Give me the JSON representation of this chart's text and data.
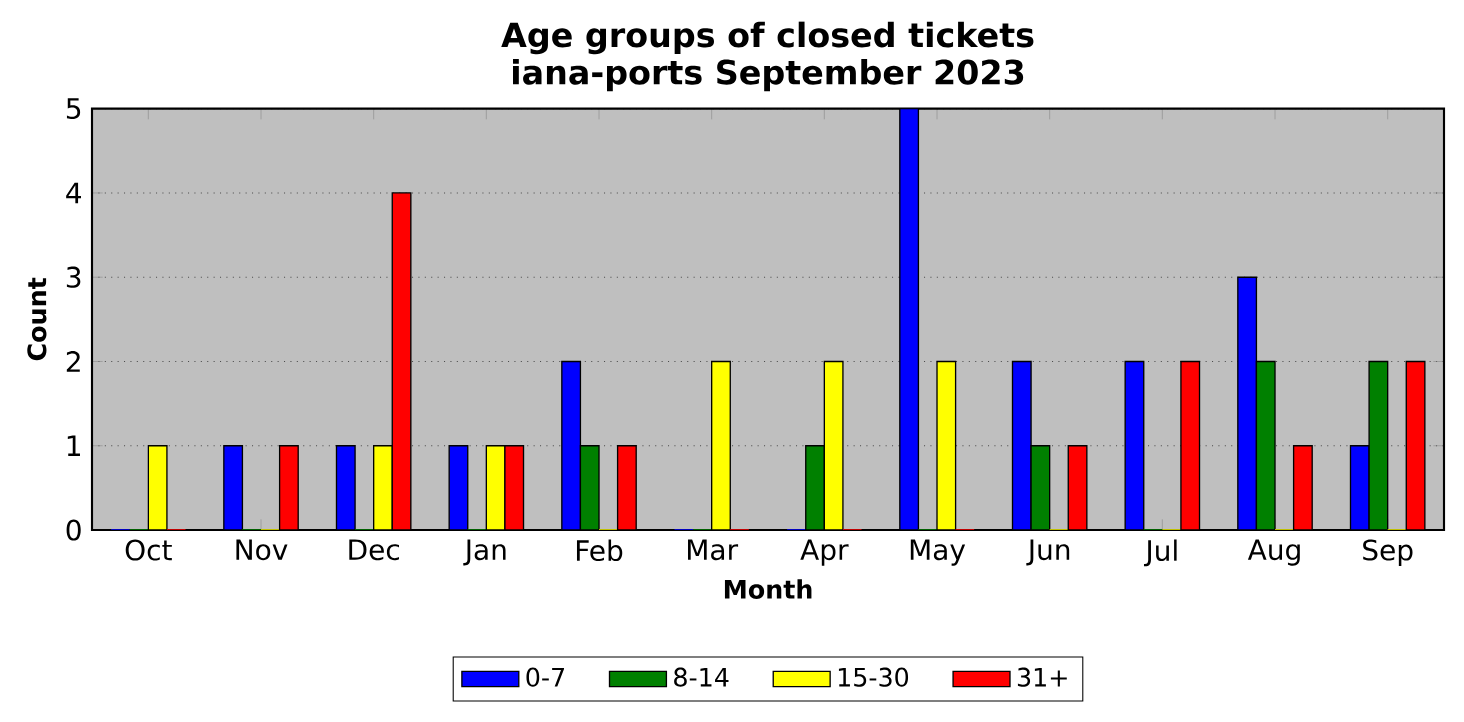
{
  "chart_data": {
    "type": "bar",
    "title": "Age groups of closed tickets",
    "subtitle": "iana-ports September 2023",
    "xlabel": "Month",
    "ylabel": "Count",
    "categories": [
      "Oct",
      "Nov",
      "Dec",
      "Jan",
      "Feb",
      "Mar",
      "Apr",
      "May",
      "Jun",
      "Jul",
      "Aug",
      "Sep"
    ],
    "series": [
      {
        "name": "0-7",
        "color": "#0000ff",
        "values": [
          0,
          1,
          1,
          1,
          2,
          0,
          0,
          5,
          2,
          2,
          3,
          1
        ]
      },
      {
        "name": "8-14",
        "color": "#008000",
        "values": [
          0,
          0,
          0,
          0,
          1,
          0,
          1,
          0,
          1,
          0,
          2,
          2
        ]
      },
      {
        "name": "15-30",
        "color": "#ffff00",
        "values": [
          1,
          0,
          1,
          1,
          0,
          2,
          2,
          2,
          0,
          0,
          0,
          0
        ]
      },
      {
        "name": "31+",
        "color": "#ff0000",
        "values": [
          0,
          1,
          4,
          1,
          1,
          0,
          0,
          0,
          1,
          2,
          1,
          2
        ]
      }
    ],
    "ylim": [
      0,
      5
    ],
    "yticks": [
      0,
      1,
      2,
      3,
      4,
      5
    ],
    "grid": "y",
    "legend": "bottom"
  }
}
